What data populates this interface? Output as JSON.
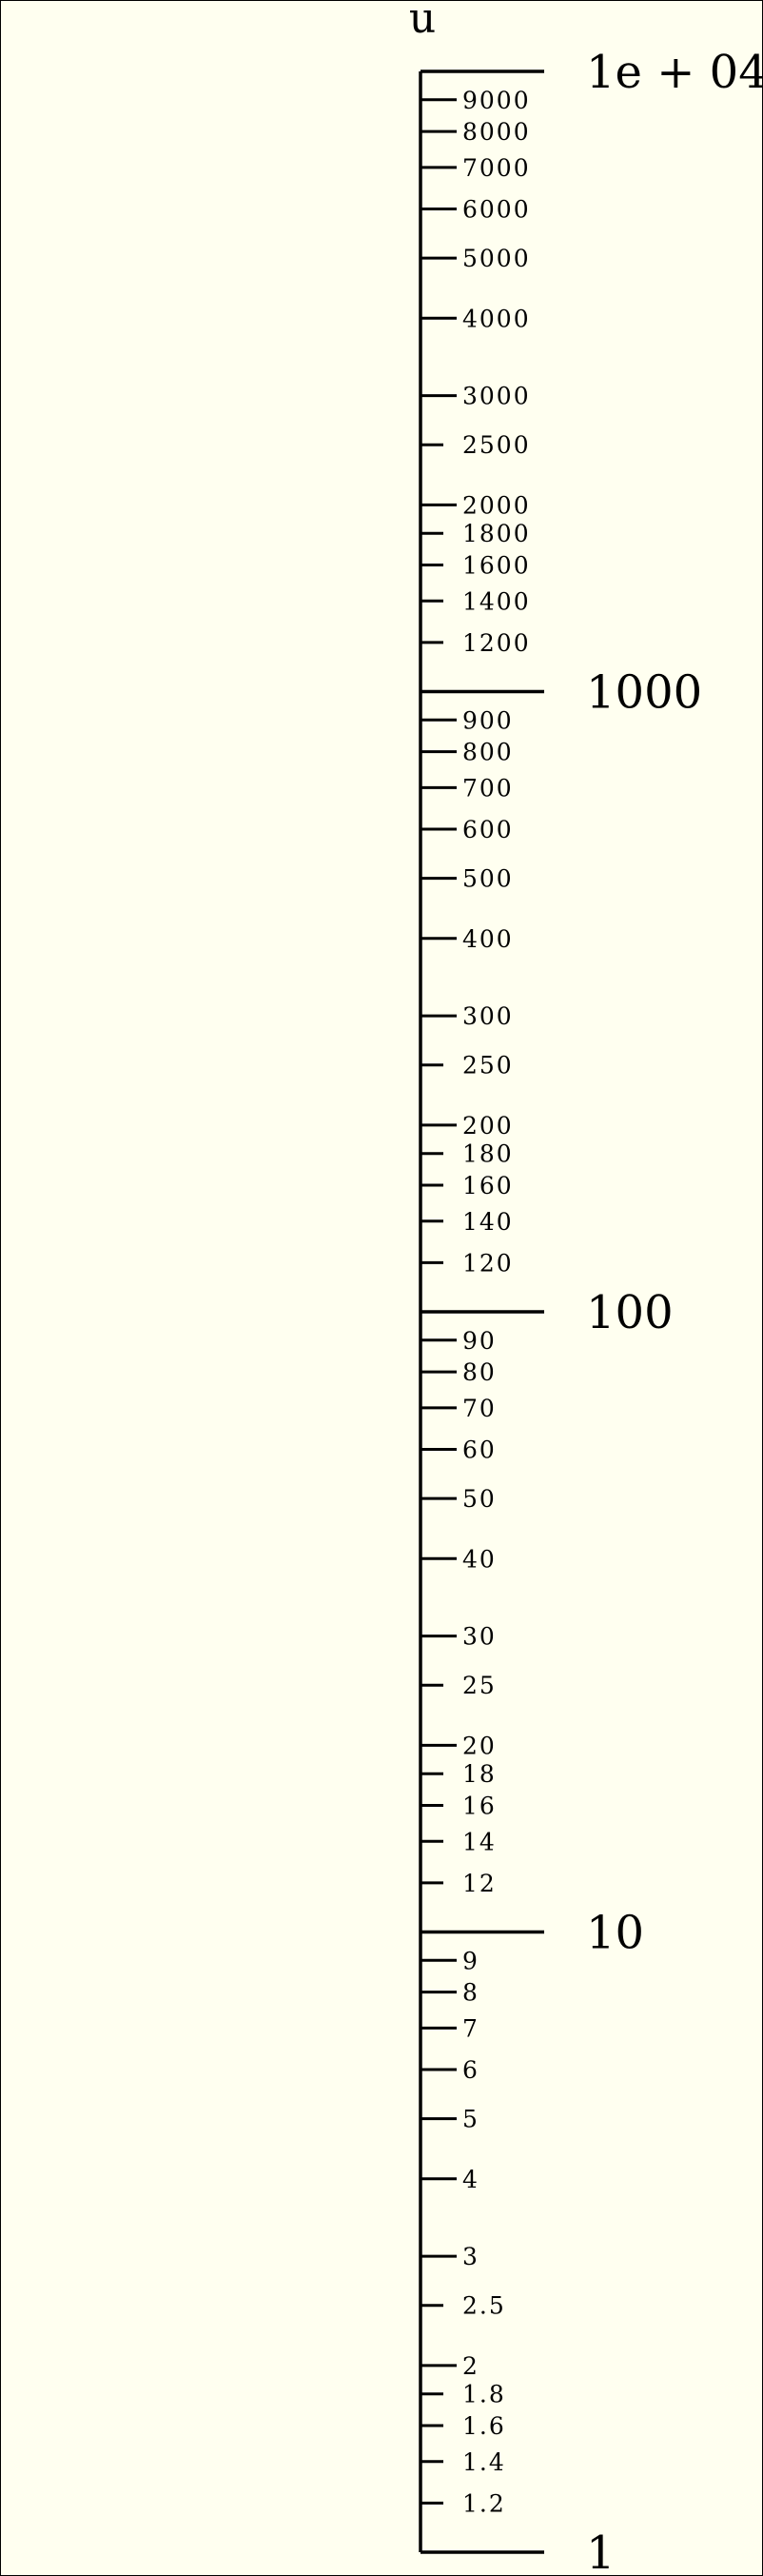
{
  "scale": {
    "title": "u",
    "type": "log",
    "range": [
      1,
      10000
    ],
    "major_ticks": [
      {
        "value": 1,
        "label": "1"
      },
      {
        "value": 10,
        "label": "10"
      },
      {
        "value": 100,
        "label": "100"
      },
      {
        "value": 1000,
        "label": "1000"
      },
      {
        "value": 10000,
        "label": "1e + 04"
      }
    ],
    "minor_ticks": [
      {
        "value": 1.2,
        "label": "1.2"
      },
      {
        "value": 1.4,
        "label": "1.4"
      },
      {
        "value": 1.6,
        "label": "1.6"
      },
      {
        "value": 1.8,
        "label": "1.8"
      },
      {
        "value": 2,
        "label": "2"
      },
      {
        "value": 2.5,
        "label": "2.5"
      },
      {
        "value": 3,
        "label": "3"
      },
      {
        "value": 4,
        "label": "4"
      },
      {
        "value": 5,
        "label": "5"
      },
      {
        "value": 6,
        "label": "6"
      },
      {
        "value": 7,
        "label": "7"
      },
      {
        "value": 8,
        "label": "8"
      },
      {
        "value": 9,
        "label": "9"
      },
      {
        "value": 12,
        "label": "12"
      },
      {
        "value": 14,
        "label": "14"
      },
      {
        "value": 16,
        "label": "16"
      },
      {
        "value": 18,
        "label": "18"
      },
      {
        "value": 20,
        "label": "20"
      },
      {
        "value": 25,
        "label": "25"
      },
      {
        "value": 30,
        "label": "30"
      },
      {
        "value": 40,
        "label": "40"
      },
      {
        "value": 50,
        "label": "50"
      },
      {
        "value": 60,
        "label": "60"
      },
      {
        "value": 70,
        "label": "70"
      },
      {
        "value": 80,
        "label": "80"
      },
      {
        "value": 90,
        "label": "90"
      },
      {
        "value": 120,
        "label": "120"
      },
      {
        "value": 140,
        "label": "140"
      },
      {
        "value": 160,
        "label": "160"
      },
      {
        "value": 180,
        "label": "180"
      },
      {
        "value": 200,
        "label": "200"
      },
      {
        "value": 250,
        "label": "250"
      },
      {
        "value": 300,
        "label": "300"
      },
      {
        "value": 400,
        "label": "400"
      },
      {
        "value": 500,
        "label": "500"
      },
      {
        "value": 600,
        "label": "600"
      },
      {
        "value": 700,
        "label": "700"
      },
      {
        "value": 800,
        "label": "800"
      },
      {
        "value": 900,
        "label": "900"
      },
      {
        "value": 1200,
        "label": "1200"
      },
      {
        "value": 1400,
        "label": "1400"
      },
      {
        "value": 1600,
        "label": "1600"
      },
      {
        "value": 1800,
        "label": "1800"
      },
      {
        "value": 2000,
        "label": "2000"
      },
      {
        "value": 2500,
        "label": "2500"
      },
      {
        "value": 3000,
        "label": "3000"
      },
      {
        "value": 4000,
        "label": "4000"
      },
      {
        "value": 5000,
        "label": "5000"
      },
      {
        "value": 6000,
        "label": "6000"
      },
      {
        "value": 7000,
        "label": "7000"
      },
      {
        "value": 8000,
        "label": "8000"
      },
      {
        "value": 9000,
        "label": "9000"
      }
    ]
  }
}
